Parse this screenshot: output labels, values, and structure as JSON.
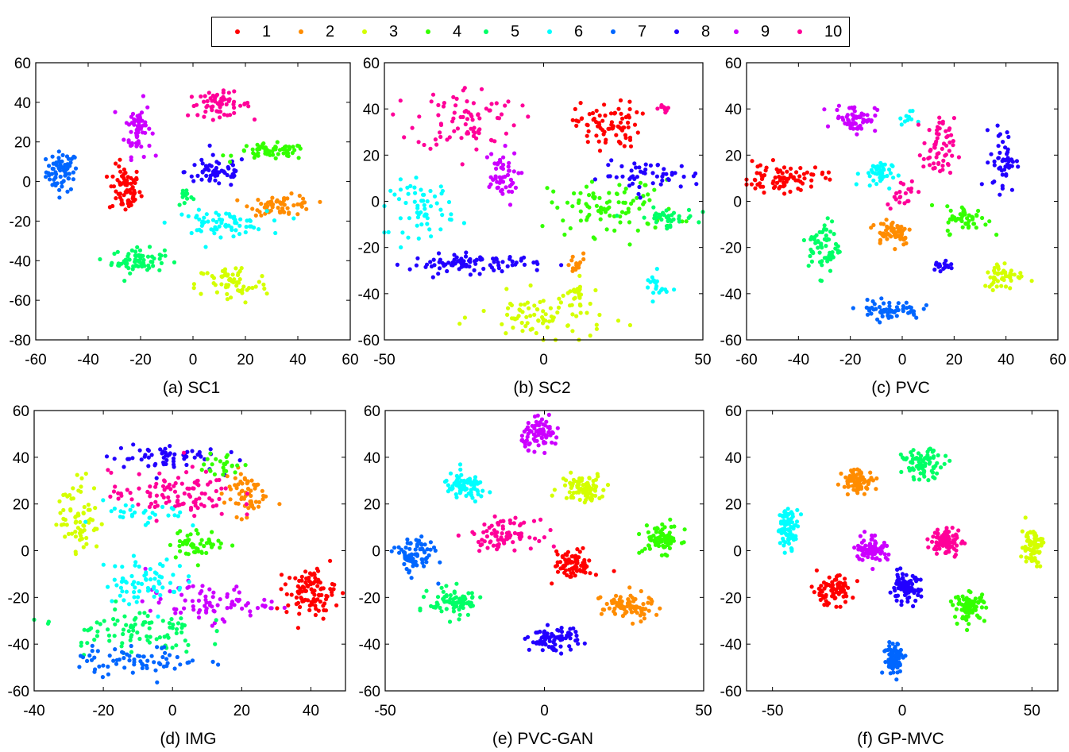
{
  "legend": {
    "entries": [
      {
        "label": "1",
        "color": "#ff0000"
      },
      {
        "label": "2",
        "color": "#ff8c00"
      },
      {
        "label": "3",
        "color": "#d4ff00"
      },
      {
        "label": "4",
        "color": "#33ff00"
      },
      {
        "label": "5",
        "color": "#00ff66"
      },
      {
        "label": "6",
        "color": "#00ffff"
      },
      {
        "label": "7",
        "color": "#0066ff"
      },
      {
        "label": "8",
        "color": "#2200ff"
      },
      {
        "label": "9",
        "color": "#cc00ff"
      },
      {
        "label": "10",
        "color": "#ff0099"
      }
    ]
  },
  "chart_data": [
    {
      "type": "scatter",
      "title": "(a) SC1",
      "xlim": [
        -60,
        60
      ],
      "ylim": [
        -80,
        60
      ],
      "xticks": [
        -60,
        -40,
        -20,
        0,
        20,
        40,
        60
      ],
      "yticks": [
        -80,
        -60,
        -40,
        -20,
        0,
        20,
        40,
        60
      ],
      "clusters": [
        {
          "class": 7,
          "x": -50,
          "y": 5,
          "sx": 3,
          "sy": 5,
          "n": 70
        },
        {
          "class": 1,
          "x": -26,
          "y": -4,
          "sx": 3,
          "sy": 6,
          "n": 70
        },
        {
          "class": 9,
          "x": -21,
          "y": 27,
          "sx": 2.5,
          "sy": 7,
          "n": 60
        },
        {
          "class": 5,
          "x": -21,
          "y": -40,
          "sx": 5,
          "sy": 3,
          "n": 70
        },
        {
          "class": 10,
          "x": 10,
          "y": 39,
          "sx": 6,
          "sy": 3,
          "n": 60
        },
        {
          "class": 8,
          "x": 9,
          "y": 5,
          "sx": 6,
          "sy": 4,
          "n": 60
        },
        {
          "class": 4,
          "x": 30,
          "y": 15,
          "sx": 7,
          "sy": 2,
          "n": 60
        },
        {
          "class": 2,
          "x": 34,
          "y": -12,
          "sx": 6,
          "sy": 2.5,
          "n": 60
        },
        {
          "class": 6,
          "x": 10,
          "y": -21,
          "sx": 9,
          "sy": 3,
          "n": 70
        },
        {
          "class": 3,
          "x": 15,
          "y": -52,
          "sx": 7,
          "sy": 5,
          "n": 60
        },
        {
          "class": 5,
          "x": -3,
          "y": -7,
          "sx": 1.5,
          "sy": 3,
          "n": 12
        }
      ]
    },
    {
      "type": "scatter",
      "title": "(b) SC2",
      "xlim": [
        -50,
        50
      ],
      "ylim": [
        -60,
        60
      ],
      "xticks": [
        -50,
        0,
        50
      ],
      "yticks": [
        -60,
        -40,
        -20,
        0,
        20,
        40,
        60
      ],
      "clusters": [
        {
          "class": 10,
          "x": -24,
          "y": 36,
          "sx": 8,
          "sy": 7,
          "n": 80
        },
        {
          "class": 9,
          "x": -14,
          "y": 10,
          "sx": 3,
          "sy": 6,
          "n": 50
        },
        {
          "class": 1,
          "x": 20,
          "y": 33,
          "sx": 5,
          "sy": 5,
          "n": 80
        },
        {
          "class": 10,
          "x": 38,
          "y": 40,
          "sx": 1,
          "sy": 1,
          "n": 10
        },
        {
          "class": 4,
          "x": 22,
          "y": -3,
          "sx": 10,
          "sy": 6,
          "n": 90
        },
        {
          "class": 5,
          "x": 38,
          "y": -7,
          "sx": 5,
          "sy": 2,
          "n": 40
        },
        {
          "class": 8,
          "x": 34,
          "y": 11,
          "sx": 8,
          "sy": 3,
          "n": 50
        },
        {
          "class": 6,
          "x": -38,
          "y": -3,
          "sx": 5,
          "sy": 6,
          "n": 60
        },
        {
          "class": 8,
          "x": -22,
          "y": -27,
          "sx": 10,
          "sy": 2,
          "n": 90
        },
        {
          "class": 3,
          "x": 0,
          "y": -50,
          "sx": 10,
          "sy": 5,
          "n": 80
        },
        {
          "class": 3,
          "x": 10,
          "y": -41,
          "sx": 1.5,
          "sy": 3,
          "n": 20
        },
        {
          "class": 2,
          "x": 10,
          "y": -28,
          "sx": 1.5,
          "sy": 3,
          "n": 15
        },
        {
          "class": 6,
          "x": 35,
          "y": -37,
          "sx": 2,
          "sy": 3,
          "n": 20
        }
      ]
    },
    {
      "type": "scatter",
      "title": "(c) PVC",
      "xlim": [
        -60,
        60
      ],
      "ylim": [
        -60,
        60
      ],
      "xticks": [
        -60,
        -40,
        -20,
        0,
        20,
        40,
        60
      ],
      "yticks": [
        -60,
        -40,
        -20,
        0,
        20,
        40,
        60
      ],
      "clusters": [
        {
          "class": 1,
          "x": -46,
          "y": 10,
          "sx": 8,
          "sy": 3,
          "n": 80
        },
        {
          "class": 9,
          "x": -18,
          "y": 36,
          "sx": 4,
          "sy": 3,
          "n": 60
        },
        {
          "class": 6,
          "x": -10,
          "y": 12,
          "sx": 3,
          "sy": 3,
          "n": 40
        },
        {
          "class": 6,
          "x": 2,
          "y": 36,
          "sx": 1.5,
          "sy": 1.5,
          "n": 10
        },
        {
          "class": 10,
          "x": 14,
          "y": 22,
          "sx": 3,
          "sy": 7,
          "n": 60
        },
        {
          "class": 8,
          "x": 39,
          "y": 18,
          "sx": 2.5,
          "sy": 7,
          "n": 50
        },
        {
          "class": 5,
          "x": -30,
          "y": -20,
          "sx": 3,
          "sy": 6,
          "n": 60
        },
        {
          "class": 2,
          "x": -4,
          "y": -13,
          "sx": 4,
          "sy": 3,
          "n": 60
        },
        {
          "class": 4,
          "x": 25,
          "y": -8,
          "sx": 4,
          "sy": 3,
          "n": 50
        },
        {
          "class": 3,
          "x": 39,
          "y": -32,
          "sx": 4,
          "sy": 3,
          "n": 50
        },
        {
          "class": 7,
          "x": -5,
          "y": -47,
          "sx": 6,
          "sy": 2,
          "n": 60
        },
        {
          "class": 8,
          "x": 15,
          "y": -28,
          "sx": 3,
          "sy": 1.5,
          "n": 20
        },
        {
          "class": 10,
          "x": 0,
          "y": 4,
          "sx": 3,
          "sy": 3,
          "n": 20
        }
      ]
    },
    {
      "type": "scatter",
      "title": "(d) IMG",
      "xlim": [
        -40,
        50
      ],
      "ylim": [
        -60,
        60
      ],
      "xticks": [
        -40,
        -20,
        0,
        20,
        40
      ],
      "yticks": [
        -60,
        -40,
        -20,
        0,
        20,
        40,
        60
      ],
      "clusters": [
        {
          "class": 1,
          "x": 40,
          "y": -18,
          "sx": 3.5,
          "sy": 5,
          "n": 100
        },
        {
          "class": 9,
          "x": 10,
          "y": -22,
          "sx": 9,
          "sy": 4,
          "n": 80
        },
        {
          "class": 8,
          "x": -3,
          "y": 40,
          "sx": 8,
          "sy": 3,
          "n": 60
        },
        {
          "class": 2,
          "x": 21,
          "y": 25,
          "sx": 3,
          "sy": 5,
          "n": 60
        },
        {
          "class": 10,
          "x": 0,
          "y": 24,
          "sx": 9,
          "sy": 5,
          "n": 100
        },
        {
          "class": 3,
          "x": -27,
          "y": 15,
          "sx": 3,
          "sy": 8,
          "n": 70
        },
        {
          "class": 4,
          "x": 7,
          "y": 3,
          "sx": 4,
          "sy": 3,
          "n": 50
        },
        {
          "class": 6,
          "x": -8,
          "y": -13,
          "sx": 6,
          "sy": 5,
          "n": 70
        },
        {
          "class": 5,
          "x": -12,
          "y": -34,
          "sx": 10,
          "sy": 5,
          "n": 90
        },
        {
          "class": 7,
          "x": -10,
          "y": -47,
          "sx": 9,
          "sy": 3,
          "n": 70
        },
        {
          "class": 6,
          "x": -8,
          "y": 15,
          "sx": 6,
          "sy": 3,
          "n": 30
        },
        {
          "class": 4,
          "x": 14,
          "y": 36,
          "sx": 3,
          "sy": 3,
          "n": 25
        }
      ]
    },
    {
      "type": "scatter",
      "title": "(e) PVC-GAN",
      "xlim": [
        -50,
        50
      ],
      "ylim": [
        -60,
        60
      ],
      "xticks": [
        -50,
        0,
        50
      ],
      "yticks": [
        -60,
        -40,
        -20,
        0,
        20,
        40,
        60
      ],
      "clusters": [
        {
          "class": 9,
          "x": -1,
          "y": 50,
          "sx": 3,
          "sy": 3,
          "n": 80
        },
        {
          "class": 6,
          "x": -25,
          "y": 27,
          "sx": 3.5,
          "sy": 3,
          "n": 80
        },
        {
          "class": 3,
          "x": 12,
          "y": 27,
          "sx": 3.5,
          "sy": 3,
          "n": 80
        },
        {
          "class": 10,
          "x": -13,
          "y": 7,
          "sx": 5,
          "sy": 3,
          "n": 80
        },
        {
          "class": 4,
          "x": 37,
          "y": 5,
          "sx": 3,
          "sy": 3,
          "n": 80
        },
        {
          "class": 7,
          "x": -41,
          "y": -2,
          "sx": 3,
          "sy": 4,
          "n": 80
        },
        {
          "class": 1,
          "x": 9,
          "y": -6,
          "sx": 3,
          "sy": 3,
          "n": 80
        },
        {
          "class": 5,
          "x": -28,
          "y": -22,
          "sx": 4,
          "sy": 3,
          "n": 80
        },
        {
          "class": 2,
          "x": 26,
          "y": -24,
          "sx": 4,
          "sy": 3,
          "n": 80
        },
        {
          "class": 8,
          "x": 3,
          "y": -38,
          "sx": 4,
          "sy": 2.5,
          "n": 80
        }
      ]
    },
    {
      "type": "scatter",
      "title": "(f) GP-MVC",
      "xlim": [
        -60,
        60
      ],
      "ylim": [
        -60,
        60
      ],
      "xticks": [
        -50,
        0,
        50
      ],
      "yticks": [
        -60,
        -40,
        -20,
        0,
        20,
        40,
        60
      ],
      "clusters": [
        {
          "class": 5,
          "x": 8,
          "y": 37,
          "sx": 4,
          "sy": 3,
          "n": 80
        },
        {
          "class": 2,
          "x": -17,
          "y": 30,
          "sx": 3,
          "sy": 2.5,
          "n": 80
        },
        {
          "class": 6,
          "x": -44,
          "y": 10,
          "sx": 2,
          "sy": 4,
          "n": 80
        },
        {
          "class": 9,
          "x": -12,
          "y": 1,
          "sx": 3,
          "sy": 3,
          "n": 80
        },
        {
          "class": 10,
          "x": 17,
          "y": 4,
          "sx": 3,
          "sy": 3,
          "n": 80
        },
        {
          "class": 3,
          "x": 50,
          "y": 2,
          "sx": 2,
          "sy": 4,
          "n": 80
        },
        {
          "class": 1,
          "x": -27,
          "y": -17,
          "sx": 4,
          "sy": 3,
          "n": 80
        },
        {
          "class": 8,
          "x": 1,
          "y": -16,
          "sx": 3,
          "sy": 3,
          "n": 80
        },
        {
          "class": 4,
          "x": 26,
          "y": -24,
          "sx": 3,
          "sy": 3,
          "n": 80
        },
        {
          "class": 7,
          "x": -3,
          "y": -46,
          "sx": 2,
          "sy": 3.5,
          "n": 80
        }
      ]
    }
  ]
}
